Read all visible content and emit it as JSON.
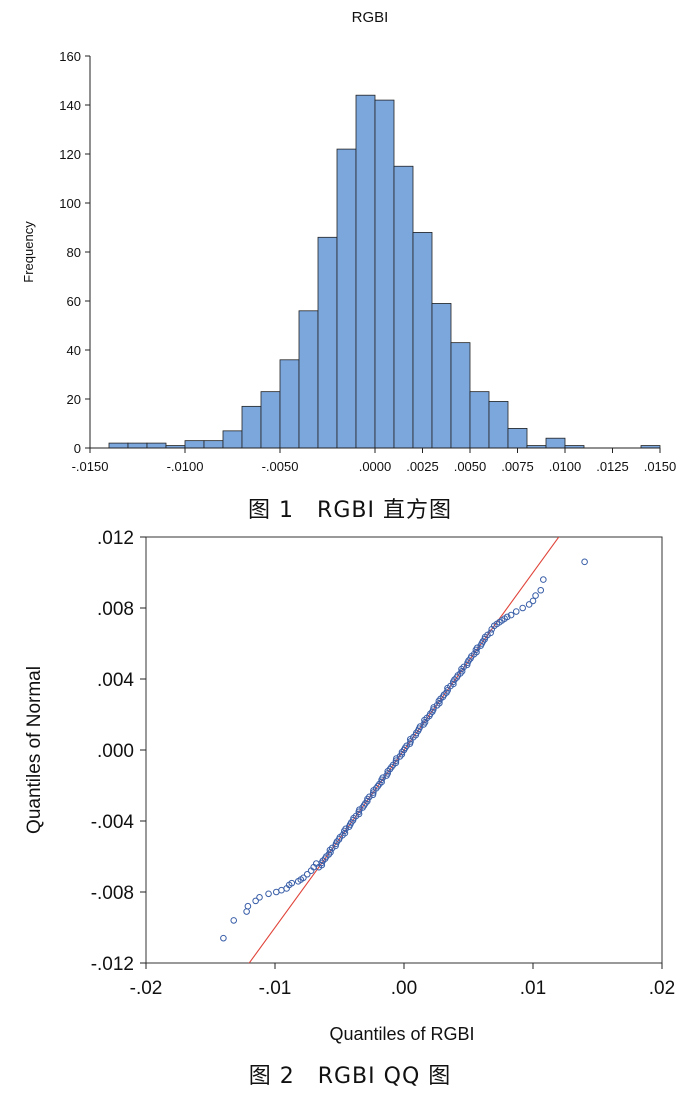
{
  "figure1": {
    "caption": "图 1　RGBI 直方图",
    "chart_data": {
      "type": "bar",
      "title": "RGBI",
      "xlabel": "",
      "ylabel": "Frequency",
      "xlim": [
        -0.015,
        0.015
      ],
      "ylim": [
        0,
        160
      ],
      "xticks": [
        -0.015,
        -0.01,
        -0.005,
        0.0,
        0.0025,
        0.005,
        0.0075,
        0.01,
        0.0125,
        0.015
      ],
      "xtick_labels": [
        "-.0150",
        "-.0100",
        "-.0050",
        ".0000",
        ".0025",
        ".0050",
        ".0075",
        ".0100",
        ".0125",
        ".0150"
      ],
      "yticks": [
        0,
        20,
        40,
        60,
        80,
        100,
        120,
        140,
        160
      ],
      "ytick_labels": [
        "0",
        "20",
        "40",
        "60",
        "80",
        "100",
        "120",
        "140",
        "160"
      ],
      "bin_start": -0.014,
      "bin_width": 0.001,
      "values": [
        2,
        2,
        2,
        1,
        3,
        3,
        7,
        17,
        23,
        36,
        56,
        86,
        122,
        144,
        142,
        115,
        88,
        59,
        43,
        23,
        19,
        8,
        1,
        4,
        1,
        0,
        0,
        0,
        1
      ],
      "bar_color": "#7ba7dd"
    }
  },
  "figure2": {
    "caption": "图 2　RGBI QQ 图",
    "chart_data": {
      "type": "scatter",
      "title": "",
      "xlabel": "Quantiles of RGBI",
      "ylabel": "Quantiles of Normal",
      "xlim": [
        -0.02,
        0.02
      ],
      "ylim": [
        -0.012,
        0.012
      ],
      "xticks": [
        -0.02,
        -0.01,
        0.0,
        0.01,
        0.02
      ],
      "xtick_labels": [
        "-.02",
        "-.01",
        ".00",
        ".01",
        ".02"
      ],
      "yticks": [
        -0.012,
        -0.008,
        -0.004,
        0.0,
        0.004,
        0.008,
        0.012
      ],
      "ytick_labels": [
        "-.012",
        "-.008",
        "-.004",
        ".000",
        ".004",
        ".008",
        ".012"
      ],
      "reference_line": {
        "slope": 1.0,
        "intercept": 0.0,
        "color": "#e0443a"
      },
      "marker_color": "#3a5fa8",
      "tail_points": [
        [
          -0.014,
          -0.0106
        ],
        [
          -0.0132,
          -0.0096
        ],
        [
          -0.0122,
          -0.0091
        ],
        [
          -0.0121,
          -0.0088
        ],
        [
          -0.0115,
          -0.0085
        ],
        [
          -0.0112,
          -0.0083
        ],
        [
          -0.0105,
          -0.0081
        ],
        [
          -0.0099,
          -0.008
        ],
        [
          -0.0095,
          -0.0079
        ],
        [
          -0.0091,
          -0.0078
        ],
        [
          -0.0089,
          -0.0076
        ],
        [
          -0.0087,
          -0.0075
        ],
        [
          -0.0082,
          -0.0074
        ],
        [
          -0.008,
          -0.0073
        ],
        [
          -0.0078,
          -0.0072
        ],
        [
          -0.0075,
          -0.007
        ],
        [
          -0.0072,
          -0.0068
        ],
        [
          -0.007,
          -0.0066
        ],
        [
          -0.0068,
          -0.0064
        ],
        [
          0.0068,
          0.0068
        ],
        [
          0.007,
          0.007
        ],
        [
          0.0072,
          0.0071
        ],
        [
          0.0074,
          0.0072
        ],
        [
          0.0076,
          0.0073
        ],
        [
          0.0078,
          0.0074
        ],
        [
          0.008,
          0.0075
        ],
        [
          0.0083,
          0.0076
        ],
        [
          0.0087,
          0.0078
        ],
        [
          0.0092,
          0.008
        ],
        [
          0.0097,
          0.0082
        ],
        [
          0.01,
          0.0084
        ],
        [
          0.0102,
          0.0087
        ],
        [
          0.0106,
          0.009
        ],
        [
          0.0108,
          0.0096
        ],
        [
          0.014,
          0.0106
        ]
      ],
      "body_range": [
        -0.0066,
        0.0066
      ],
      "body_step": 0.00012,
      "body_wiggle": 0.00012
    }
  }
}
